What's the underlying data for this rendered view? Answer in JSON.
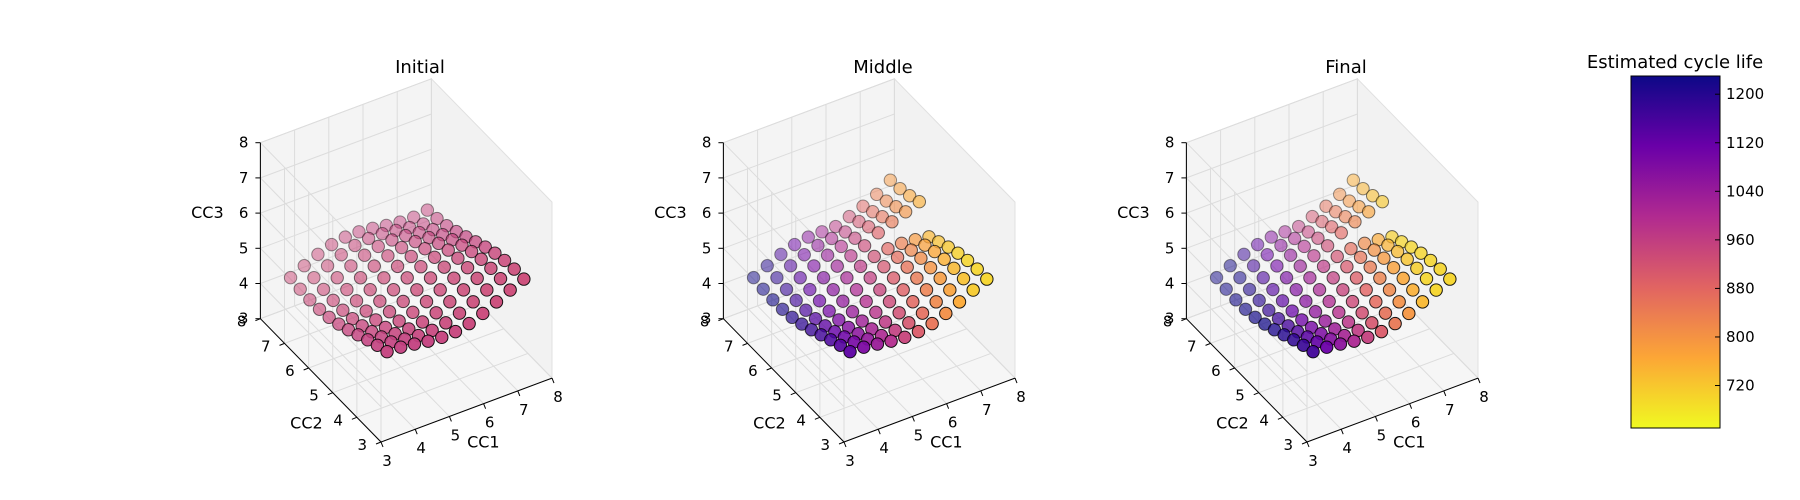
{
  "chart_data": [
    {
      "type": "scatter",
      "subtype": "3d-scatter",
      "title": "Initial",
      "xlabel": "CC1",
      "ylabel": "CC2",
      "zlabel": "CC3",
      "xlim": [
        3,
        8
      ],
      "ylim": [
        3,
        8
      ],
      "zlim": [
        3,
        8
      ],
      "ticks": [
        3,
        4,
        5,
        6,
        7,
        8
      ],
      "zticks": [
        3,
        4,
        5,
        6,
        7,
        8
      ],
      "grid": true,
      "color_encoding": "estimated cycle life",
      "surface": {
        "cc1_range": [
          3.6,
          7.6
        ],
        "cc2_range": [
          3.6,
          7.6
        ],
        "cc3_range": [
          4.3,
          5.6
        ],
        "estimated_cycle_life_range": [
          930,
          960
        ]
      }
    },
    {
      "type": "scatter",
      "subtype": "3d-scatter",
      "title": "Middle",
      "xlabel": "CC1",
      "ylabel": "CC2",
      "zlabel": "CC3",
      "xlim": [
        3,
        8
      ],
      "ylim": [
        3,
        8
      ],
      "zlim": [
        3,
        8
      ],
      "ticks": [
        3,
        4,
        5,
        6,
        7,
        8
      ],
      "zticks": [
        3,
        4,
        5,
        6,
        7,
        8
      ],
      "grid": true,
      "color_encoding": "estimated cycle life",
      "surface": {
        "cc1_range": [
          3.6,
          7.6
        ],
        "cc2_range": [
          3.6,
          7.6
        ],
        "cc3_range": [
          4.3,
          6.2
        ],
        "estimated_cycle_life_range": [
          720,
          1200
        ]
      }
    },
    {
      "type": "scatter",
      "subtype": "3d-scatter",
      "title": "Final",
      "xlabel": "CC1",
      "ylabel": "CC2",
      "zlabel": "CC3",
      "xlim": [
        3,
        8
      ],
      "ylim": [
        3,
        8
      ],
      "zlim": [
        3,
        8
      ],
      "ticks": [
        3,
        4,
        5,
        6,
        7,
        8
      ],
      "zticks": [
        3,
        4,
        5,
        6,
        7,
        8
      ],
      "grid": true,
      "color_encoding": "estimated cycle life",
      "surface": {
        "cc1_range": [
          3.6,
          7.6
        ],
        "cc2_range": [
          3.6,
          7.6
        ],
        "cc3_range": [
          4.3,
          6.2
        ],
        "estimated_cycle_life_range": [
          700,
          1230
        ]
      }
    }
  ],
  "colorbar": {
    "title": "Estimated cycle life",
    "colormap": "plasma",
    "min": 650,
    "max": 1230,
    "ticks": [
      720,
      800,
      880,
      960,
      1040,
      1120,
      1200
    ],
    "tick_labels": [
      "720",
      "800",
      "880",
      "960",
      "1040",
      "1120",
      "1200"
    ],
    "stops": [
      "#f0f921",
      "#fca636",
      "#e16462",
      "#b12a90",
      "#6a00a8",
      "#0d0887"
    ]
  }
}
